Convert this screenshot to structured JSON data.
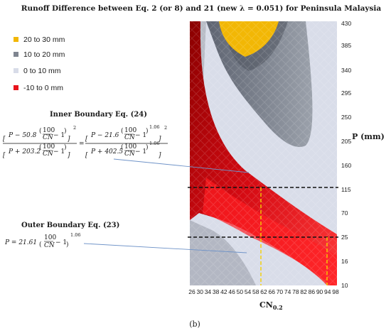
{
  "chart_data": {
    "type": "heatmap",
    "title": "Runoff Difference between Eq. 2 (or 8) and 21 (new λ = 0.051) for Peninsula Malaysia",
    "xlabel": "CN",
    "xlabel_sub": "0.2",
    "ylabel": "P (mm)",
    "x_ticks": [
      "26",
      "30",
      "34",
      "38",
      "42",
      "46",
      "50",
      "54",
      "58",
      "62",
      "66",
      "70",
      "74",
      "78",
      "82",
      "86",
      "90",
      "94",
      "98"
    ],
    "y_ticks": [
      "430",
      "385",
      "340",
      "295",
      "250",
      "205",
      "160",
      "115",
      "70",
      "25",
      "16",
      "10"
    ],
    "legend": [
      {
        "label": "20 to 30 mm",
        "color": "#f2b705"
      },
      {
        "label": "10 to 20 mm",
        "color": "#7f8590"
      },
      {
        "label": "0 to 10 mm",
        "color": "#d8dce8"
      },
      {
        "label": "-10 to 0 mm",
        "color": "#e8141c"
      }
    ],
    "reference_lines": {
      "horizontal_p": [
        "115",
        "25"
      ],
      "vertical_cn": [
        "62",
        "93"
      ]
    }
  },
  "annotations": {
    "inner": {
      "title": "Inner Boundary Eq. (24)",
      "lhs_num_a": "P − 50.8",
      "lhs_den_a": "P + 203.2",
      "rhs_num_a": "P − 21.6",
      "rhs_den_a": "P + 402.5",
      "frac_num": "100",
      "frac_den": "CN",
      "minus_one": "− 1",
      "exp_2": "2",
      "exp_106": "1.06",
      "equals": "="
    },
    "outer": {
      "title": "Outer Boundary Eq. (23)",
      "lhs": "P = 21.61",
      "frac_num": "100",
      "frac_den": "CN",
      "minus_one": "− 1",
      "exp_106": "1.06"
    }
  },
  "caption": "(b)"
}
